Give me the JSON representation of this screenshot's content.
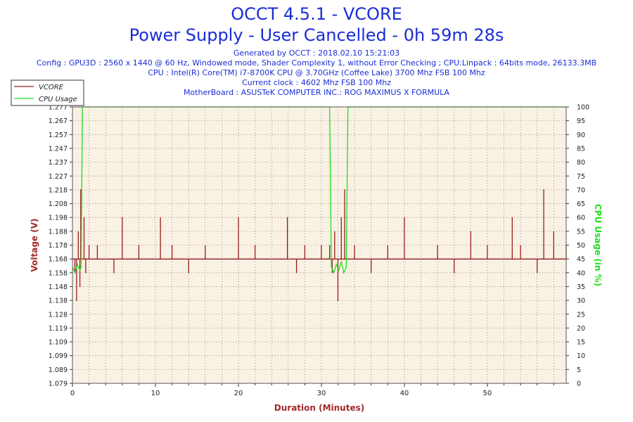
{
  "title": "OCCT 4.5.1 - VCORE",
  "subtitle": "Power Supply - User Cancelled - 0h 59m 28s",
  "info_lines": [
    "Generated by OCCT : 2018.02.10 15:21:03",
    "Config : GPU3D : 2560 x 1440 @ 60 Hz, Windowed mode, Shader Complexity 1, without Error Checking ; CPU:Linpack : 64bits mode, 26133.3MB",
    "CPU : Intel(R) Core(TM) i7-8700K CPU @ 3.70GHz (Coffee Lake) 3700 Mhz FSB 100 Mhz",
    "Current clock : 4602 Mhz FSB 100 Mhz",
    "MotherBoard : ASUSTeK COMPUTER INC.: ROG MAXIMUS X FORMULA"
  ],
  "colors": {
    "title": "#1a2dd6",
    "vcore": "#9b1b1b",
    "cpu": "#1ee01e",
    "plot_bg": "#f9f1e4",
    "grid": "#8a7a70",
    "axis_title": "#a52a2a"
  },
  "chart_data": {
    "type": "line",
    "xlabel": "Duration (Minutes)",
    "ylabel": "Voltage (V)",
    "y2label": "CPU Usage (in %)",
    "xlim": [
      0,
      59.5
    ],
    "ylim": [
      1.079,
      1.277
    ],
    "y2lim": [
      0,
      100
    ],
    "x_ticks": [
      0,
      10,
      20,
      30,
      40,
      50
    ],
    "y_ticks": [
      "1.079",
      "1.089",
      "1.099",
      "1.109",
      "1.119",
      "1.128",
      "1.138",
      "1.148",
      "1.158",
      "1.168",
      "1.178",
      "1.188",
      "1.198",
      "1.208",
      "1.218",
      "1.227",
      "1.237",
      "1.247",
      "1.257",
      "1.267",
      "1.277"
    ],
    "y2_ticks": [
      0,
      5,
      10,
      15,
      20,
      25,
      30,
      35,
      40,
      45,
      50,
      55,
      60,
      65,
      70,
      75,
      80,
      85,
      90,
      95,
      100
    ],
    "legend_position": "top-left",
    "series": [
      {
        "name": "VCORE",
        "axis": "left",
        "baseline": 1.168,
        "x": [
          0,
          0.3,
          0.5,
          0.7,
          0.9,
          1.0,
          1.2,
          1.4,
          1.6,
          2.0,
          3,
          4,
          5,
          6,
          8,
          10,
          10.6,
          12,
          14,
          16,
          18,
          20,
          22,
          24,
          25.9,
          27,
          28,
          29,
          30,
          31.0,
          31.3,
          31.6,
          32.0,
          32.4,
          32.8,
          33.2,
          34,
          36,
          38,
          40,
          42,
          44,
          46,
          48,
          50,
          52,
          53,
          54,
          56,
          56.8,
          58,
          59.5
        ],
        "y": [
          1.168,
          1.158,
          1.138,
          1.188,
          1.148,
          1.218,
          1.168,
          1.198,
          1.158,
          1.178,
          1.178,
          1.168,
          1.158,
          1.198,
          1.178,
          1.168,
          1.198,
          1.178,
          1.158,
          1.178,
          1.168,
          1.198,
          1.178,
          1.168,
          1.198,
          1.158,
          1.178,
          1.168,
          1.178,
          1.178,
          1.158,
          1.188,
          1.138,
          1.198,
          1.218,
          1.168,
          1.178,
          1.158,
          1.178,
          1.198,
          1.168,
          1.178,
          1.158,
          1.188,
          1.178,
          1.168,
          1.198,
          1.178,
          1.158,
          1.218,
          1.188,
          1.178
        ]
      },
      {
        "name": "CPU Usage",
        "axis": "right",
        "x": [
          0,
          0.3,
          0.6,
          0.9,
          1.05,
          1.2,
          31.0,
          31.2,
          31.5,
          31.8,
          32.1,
          32.4,
          32.7,
          33.0,
          33.2,
          59.5
        ],
        "y": [
          42,
          40,
          43,
          41,
          42,
          100,
          100,
          42,
          40,
          43,
          41,
          44,
          40,
          42,
          100,
          100
        ]
      }
    ]
  }
}
